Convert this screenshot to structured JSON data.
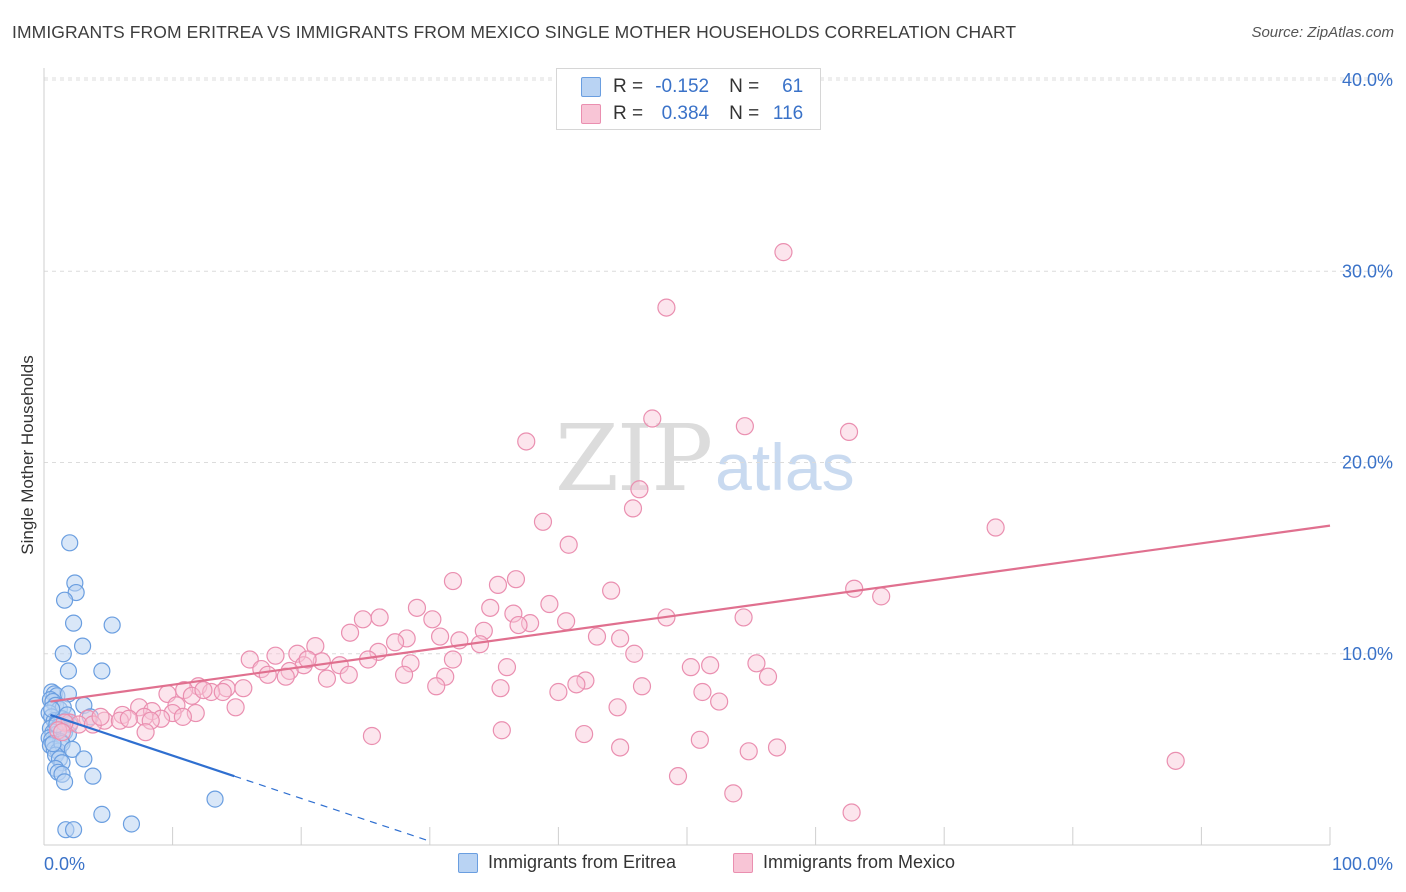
{
  "title": "IMMIGRANTS FROM ERITREA VS IMMIGRANTS FROM MEXICO SINGLE MOTHER HOUSEHOLDS CORRELATION CHART",
  "source": "Source: ZipAtlas.com",
  "watermark": {
    "zip": "ZIP",
    "atlas": "atlas"
  },
  "legend": {
    "rows": [
      {
        "r_label": "R =",
        "r_value": "-0.152",
        "n_label": "N =",
        "n_value": "61"
      },
      {
        "r_label": "R =",
        "r_value": "0.384",
        "n_label": "N =",
        "n_value": "116"
      }
    ]
  },
  "colors": {
    "eritrea_fill": "#b9d3f3",
    "eritrea_stroke": "#6a9ee0",
    "eritrea_line": "#2f6fd0",
    "mexico_fill": "#f8c5d6",
    "mexico_stroke": "#ea8fb0",
    "mexico_line": "#e0708f",
    "tick_text": "#3a72c8",
    "grid": "#dcdcdc"
  },
  "chart_data": {
    "type": "scatter",
    "title": "IMMIGRANTS FROM ERITREA VS IMMIGRANTS FROM MEXICO SINGLE MOTHER HOUSEHOLDS CORRELATION CHART",
    "xlabel": "",
    "ylabel": "Single Mother Households",
    "xlim": [
      0,
      100
    ],
    "ylim": [
      0,
      40
    ],
    "x_tick_labels": [
      "0.0%",
      "100.0%"
    ],
    "y_ticks": [
      10,
      20,
      30,
      40
    ],
    "y_tick_labels": [
      "10.0%",
      "20.0%",
      "30.0%",
      "40.0%"
    ],
    "grid": true,
    "legend_position": "bottom",
    "series": [
      {
        "name": "Immigrants from Eritrea",
        "color": "#6a9ee0",
        "points": [
          [
            2.0,
            15.8
          ],
          [
            2.4,
            13.7
          ],
          [
            2.5,
            13.2
          ],
          [
            1.6,
            12.8
          ],
          [
            2.3,
            11.6
          ],
          [
            5.3,
            11.5
          ],
          [
            3.0,
            10.4
          ],
          [
            1.5,
            10.0
          ],
          [
            1.9,
            9.1
          ],
          [
            4.5,
            9.1
          ],
          [
            0.6,
            8.0
          ],
          [
            0.8,
            7.9
          ],
          [
            1.0,
            7.8
          ],
          [
            1.9,
            7.9
          ],
          [
            0.5,
            7.6
          ],
          [
            0.7,
            7.5
          ],
          [
            0.9,
            7.3
          ],
          [
            1.2,
            7.1
          ],
          [
            1.5,
            7.2
          ],
          [
            3.1,
            7.3
          ],
          [
            0.4,
            6.9
          ],
          [
            0.6,
            6.7
          ],
          [
            0.8,
            6.5
          ],
          [
            1.0,
            6.4
          ],
          [
            1.4,
            6.6
          ],
          [
            1.7,
            6.5
          ],
          [
            2.0,
            6.3
          ],
          [
            3.6,
            6.7
          ],
          [
            0.5,
            6.1
          ],
          [
            0.9,
            6.0
          ],
          [
            1.2,
            6.2
          ],
          [
            0.7,
            5.9
          ],
          [
            1.0,
            5.8
          ],
          [
            1.6,
            5.9
          ],
          [
            1.9,
            5.8
          ],
          [
            0.4,
            5.6
          ],
          [
            0.6,
            5.5
          ],
          [
            1.3,
            5.4
          ],
          [
            0.5,
            5.2
          ],
          [
            0.8,
            5.0
          ],
          [
            1.1,
            4.9
          ],
          [
            1.4,
            5.3
          ],
          [
            2.2,
            5.0
          ],
          [
            0.9,
            4.7
          ],
          [
            1.2,
            4.5
          ],
          [
            1.4,
            4.3
          ],
          [
            3.1,
            4.5
          ],
          [
            0.9,
            4.0
          ],
          [
            1.1,
            3.8
          ],
          [
            1.4,
            3.7
          ],
          [
            3.8,
            3.6
          ],
          [
            1.6,
            3.3
          ],
          [
            13.3,
            2.4
          ],
          [
            4.5,
            1.6
          ],
          [
            6.8,
            1.1
          ],
          [
            1.7,
            0.8
          ],
          [
            2.3,
            0.8
          ],
          [
            1.8,
            6.8
          ],
          [
            0.6,
            7.1
          ],
          [
            1.0,
            6.3
          ],
          [
            0.7,
            5.3
          ]
        ],
        "trend_solid": [
          [
            0.5,
            6.8
          ],
          [
            14.8,
            3.6
          ]
        ],
        "trend_dashed": [
          [
            14.8,
            3.6
          ],
          [
            30.0,
            0.2
          ]
        ]
      },
      {
        "name": "Immigrants from Mexico",
        "color": "#ea8fb0",
        "points": [
          [
            57.5,
            31.0
          ],
          [
            48.4,
            28.1
          ],
          [
            47.3,
            22.3
          ],
          [
            54.5,
            21.9
          ],
          [
            62.6,
            21.6
          ],
          [
            37.5,
            21.1
          ],
          [
            46.3,
            18.6
          ],
          [
            45.8,
            17.6
          ],
          [
            38.8,
            16.9
          ],
          [
            40.8,
            15.7
          ],
          [
            74.0,
            16.6
          ],
          [
            31.8,
            13.8
          ],
          [
            35.3,
            13.6
          ],
          [
            36.7,
            13.9
          ],
          [
            39.3,
            12.6
          ],
          [
            44.1,
            13.3
          ],
          [
            63.0,
            13.4
          ],
          [
            65.1,
            13.0
          ],
          [
            29.0,
            12.4
          ],
          [
            34.7,
            12.4
          ],
          [
            26.1,
            11.9
          ],
          [
            24.8,
            11.8
          ],
          [
            30.2,
            11.8
          ],
          [
            36.5,
            12.1
          ],
          [
            37.8,
            11.6
          ],
          [
            40.6,
            11.7
          ],
          [
            48.4,
            11.9
          ],
          [
            54.4,
            11.9
          ],
          [
            23.8,
            11.1
          ],
          [
            28.2,
            10.8
          ],
          [
            30.8,
            10.9
          ],
          [
            34.2,
            11.2
          ],
          [
            36.9,
            11.5
          ],
          [
            43.0,
            10.9
          ],
          [
            44.8,
            10.8
          ],
          [
            27.3,
            10.6
          ],
          [
            32.3,
            10.7
          ],
          [
            26.0,
            10.1
          ],
          [
            21.1,
            10.4
          ],
          [
            19.7,
            10.0
          ],
          [
            18.0,
            9.9
          ],
          [
            16.0,
            9.7
          ],
          [
            31.8,
            9.7
          ],
          [
            45.9,
            10.0
          ],
          [
            25.2,
            9.7
          ],
          [
            21.6,
            9.6
          ],
          [
            20.2,
            9.4
          ],
          [
            16.9,
            9.2
          ],
          [
            19.1,
            9.1
          ],
          [
            28.5,
            9.5
          ],
          [
            23.0,
            9.4
          ],
          [
            50.3,
            9.3
          ],
          [
            51.8,
            9.4
          ],
          [
            55.4,
            9.5
          ],
          [
            17.4,
            8.9
          ],
          [
            18.8,
            8.8
          ],
          [
            22.0,
            8.7
          ],
          [
            23.7,
            8.9
          ],
          [
            28.0,
            8.9
          ],
          [
            31.2,
            8.8
          ],
          [
            56.3,
            8.8
          ],
          [
            42.1,
            8.6
          ],
          [
            41.4,
            8.4
          ],
          [
            35.5,
            8.2
          ],
          [
            30.5,
            8.3
          ],
          [
            12.0,
            8.3
          ],
          [
            14.2,
            8.2
          ],
          [
            10.9,
            8.1
          ],
          [
            13.0,
            8.0
          ],
          [
            15.5,
            8.2
          ],
          [
            9.6,
            7.9
          ],
          [
            11.5,
            7.8
          ],
          [
            13.9,
            8.0
          ],
          [
            51.2,
            8.0
          ],
          [
            40.0,
            8.0
          ],
          [
            52.5,
            7.5
          ],
          [
            44.6,
            7.2
          ],
          [
            10.3,
            7.3
          ],
          [
            7.4,
            7.2
          ],
          [
            14.9,
            7.2
          ],
          [
            8.4,
            7.0
          ],
          [
            10.0,
            6.9
          ],
          [
            11.8,
            6.9
          ],
          [
            6.1,
            6.8
          ],
          [
            7.8,
            6.7
          ],
          [
            9.1,
            6.6
          ],
          [
            3.4,
            6.6
          ],
          [
            4.7,
            6.5
          ],
          [
            5.9,
            6.5
          ],
          [
            8.3,
            6.5
          ],
          [
            2.0,
            6.4
          ],
          [
            2.7,
            6.3
          ],
          [
            3.8,
            6.3
          ],
          [
            4.4,
            6.7
          ],
          [
            6.6,
            6.6
          ],
          [
            10.8,
            6.7
          ],
          [
            1.6,
            6.4
          ],
          [
            1.1,
            6.0
          ],
          [
            7.9,
            5.9
          ],
          [
            1.4,
            5.9
          ],
          [
            42.0,
            5.8
          ],
          [
            35.6,
            6.0
          ],
          [
            25.5,
            5.7
          ],
          [
            51.0,
            5.5
          ],
          [
            44.8,
            5.1
          ],
          [
            57.0,
            5.1
          ],
          [
            54.8,
            4.9
          ],
          [
            88.0,
            4.4
          ],
          [
            49.3,
            3.6
          ],
          [
            53.6,
            2.7
          ],
          [
            62.8,
            1.7
          ],
          [
            36.0,
            9.3
          ],
          [
            33.9,
            10.5
          ],
          [
            20.5,
            9.7
          ],
          [
            46.5,
            8.3
          ],
          [
            12.4,
            8.1
          ]
        ],
        "trend_solid": [
          [
            0.5,
            7.5
          ],
          [
            100,
            16.7
          ]
        ]
      }
    ]
  }
}
